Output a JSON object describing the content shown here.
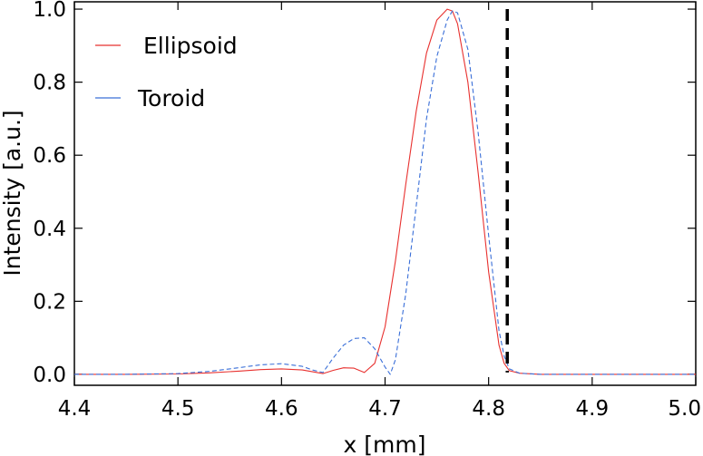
{
  "chart_data": {
    "type": "line",
    "xlabel": "x [mm]",
    "ylabel": "Intensity [a.u.]",
    "xlim": [
      4.4,
      5.0
    ],
    "ylim": [
      -0.03,
      1.02
    ],
    "xticks": [
      "4.4",
      "4.5",
      "4.6",
      "4.7",
      "4.8",
      "4.9",
      "5.0"
    ],
    "yticks": [
      "0.0",
      "0.2",
      "0.4",
      "0.6",
      "0.8",
      "1.0"
    ],
    "grid": false,
    "legend_position": "top-left",
    "vline": {
      "x": 4.818,
      "style": "dashed",
      "color": "#000000"
    },
    "series": [
      {
        "name": "Ellipsoid",
        "color": "#e8312f",
        "dash": "solid",
        "x": [
          4.4,
          4.45,
          4.5,
          4.53,
          4.56,
          4.58,
          4.6,
          4.62,
          4.63,
          4.64,
          4.65,
          4.66,
          4.67,
          4.68,
          4.69,
          4.7,
          4.71,
          4.72,
          4.73,
          4.74,
          4.75,
          4.76,
          4.765,
          4.77,
          4.78,
          4.79,
          4.8,
          4.81,
          4.815,
          4.82,
          4.83,
          4.85,
          4.9,
          4.95,
          5.0
        ],
        "y": [
          0.0,
          0.0,
          0.001,
          0.004,
          0.009,
          0.013,
          0.015,
          0.012,
          0.007,
          0.002,
          0.011,
          0.018,
          0.017,
          0.005,
          0.03,
          0.13,
          0.31,
          0.52,
          0.72,
          0.88,
          0.97,
          1.0,
          0.995,
          0.96,
          0.8,
          0.55,
          0.28,
          0.08,
          0.03,
          0.01,
          0.003,
          0.0,
          0.0,
          0.0,
          0.0
        ]
      },
      {
        "name": "Toroid",
        "color": "#3a6fd8",
        "dash": "dashed",
        "x": [
          4.4,
          4.45,
          4.5,
          4.53,
          4.55,
          4.58,
          4.6,
          4.62,
          4.63,
          4.64,
          4.65,
          4.66,
          4.67,
          4.68,
          4.69,
          4.7,
          4.705,
          4.71,
          4.72,
          4.73,
          4.74,
          4.75,
          4.76,
          4.765,
          4.77,
          4.78,
          4.79,
          4.8,
          4.81,
          4.815,
          4.82,
          4.83,
          4.85,
          4.9,
          4.95,
          5.0
        ],
        "y": [
          0.0,
          0.0,
          0.002,
          0.008,
          0.015,
          0.026,
          0.029,
          0.022,
          0.012,
          0.005,
          0.045,
          0.08,
          0.098,
          0.1,
          0.07,
          0.02,
          0.0,
          0.04,
          0.22,
          0.46,
          0.7,
          0.87,
          0.97,
          0.995,
          0.99,
          0.89,
          0.66,
          0.38,
          0.12,
          0.05,
          0.015,
          0.003,
          0.0,
          0.0,
          0.0,
          0.0
        ]
      }
    ]
  }
}
